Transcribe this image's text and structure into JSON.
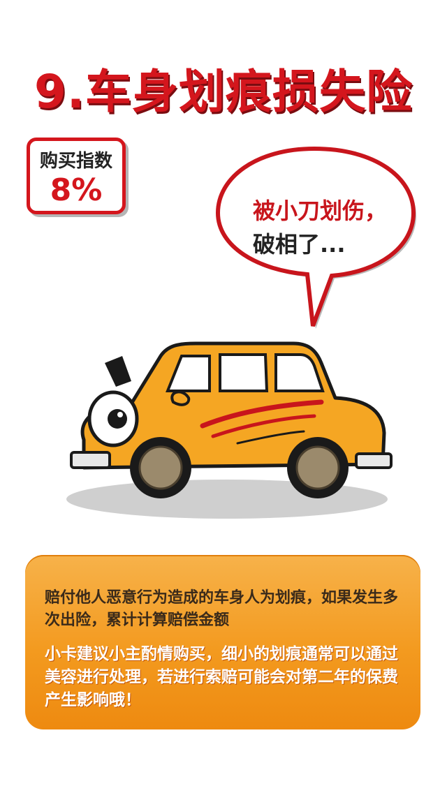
{
  "title": "9.车身划痕损失险",
  "purchase_index": {
    "label": "购买指数",
    "value": "8%"
  },
  "speech_bubble": {
    "line1": "被小刀划伤，",
    "line2": "破相了..."
  },
  "info": {
    "description": "赔付他人恶意行为造成的车身人为划痕，如果发生多次出险，累计计算赔偿金额",
    "tip": "小卡建议小主酌情购买，细小的划痕通常可以通过美容进行处理，若进行索赔可能会对第二年的保费产生影响哦！"
  },
  "colors": {
    "title_red": "#d4161d",
    "car_orange": "#f5a623",
    "card_orange": "#f39a1f"
  }
}
